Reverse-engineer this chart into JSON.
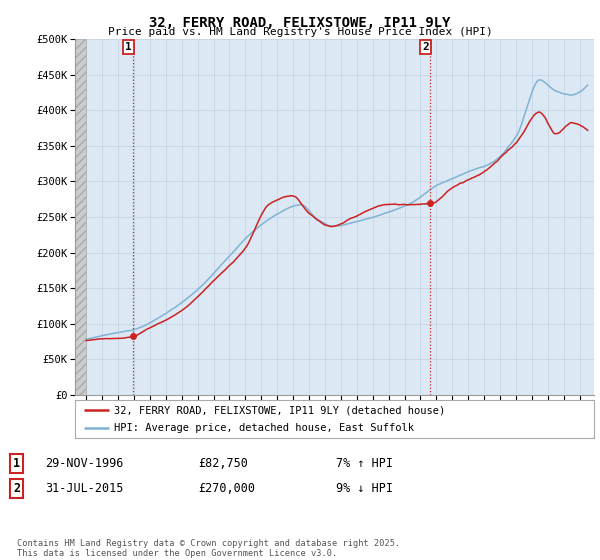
{
  "title": "32, FERRY ROAD, FELIXSTOWE, IP11 9LY",
  "subtitle": "Price paid vs. HM Land Registry's House Price Index (HPI)",
  "ylim": [
    0,
    500000
  ],
  "yticks": [
    0,
    50000,
    100000,
    150000,
    200000,
    250000,
    300000,
    350000,
    400000,
    450000,
    500000
  ],
  "ytick_labels": [
    "£0",
    "£50K",
    "£100K",
    "£150K",
    "£200K",
    "£250K",
    "£300K",
    "£350K",
    "£400K",
    "£450K",
    "£500K"
  ],
  "line1_color": "#cc2222",
  "line2_color": "#7fb3d3",
  "vline_color": "#cc2222",
  "sale1_year": 1996.916,
  "sale1_price": 82750,
  "sale1_label": "1",
  "sale2_year": 2015.583,
  "sale2_price": 270000,
  "sale2_label": "2",
  "legend_line1": "32, FERRY ROAD, FELIXSTOWE, IP11 9LY (detached house)",
  "legend_line2": "HPI: Average price, detached house, East Suffolk",
  "table_row1": [
    "1",
    "29-NOV-1996",
    "£82,750",
    "7% ↑ HPI"
  ],
  "table_row2": [
    "2",
    "31-JUL-2015",
    "£270,000",
    "9% ↓ HPI"
  ],
  "footnote": "Contains HM Land Registry data © Crown copyright and database right 2025.\nThis data is licensed under the Open Government Licence v3.0.",
  "background_color": "#ffffff",
  "grid_color": "#c8d8e8",
  "plot_bg_color": "#dce8f4"
}
